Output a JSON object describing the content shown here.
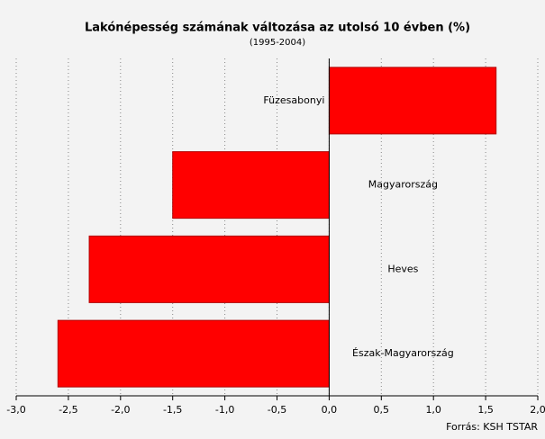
{
  "chart_data": {
    "type": "hbar",
    "title": "Lakónépesség számának változása az utolsó 10 évben (%)",
    "subtitle": "(1995-2004)",
    "source": "Forrás: KSH TSTAR",
    "categories": [
      "Füzesabonyi",
      "Magyarország",
      "Heves",
      "Észak-Magyarország"
    ],
    "values": [
      1.6,
      -1.5,
      -2.3,
      -2.6
    ],
    "color": "#ff0000",
    "xlim": [
      -3.0,
      2.0
    ],
    "xticks": [
      {
        "value": -3.0,
        "label": "-3,0"
      },
      {
        "value": -2.5,
        "label": "-2,5"
      },
      {
        "value": -2.0,
        "label": "-2,0"
      },
      {
        "value": -1.5,
        "label": "-1,5"
      },
      {
        "value": -1.0,
        "label": "-1,0"
      },
      {
        "value": -0.5,
        "label": "-0,5"
      },
      {
        "value": 0,
        "label": "0,0"
      },
      {
        "value": 0.5,
        "label": "0,5"
      },
      {
        "value": 1.0,
        "label": "1,0"
      },
      {
        "value": 1.5,
        "label": "1,5"
      },
      {
        "value": 2.0,
        "label": "2,0"
      }
    ],
    "grid": true
  }
}
